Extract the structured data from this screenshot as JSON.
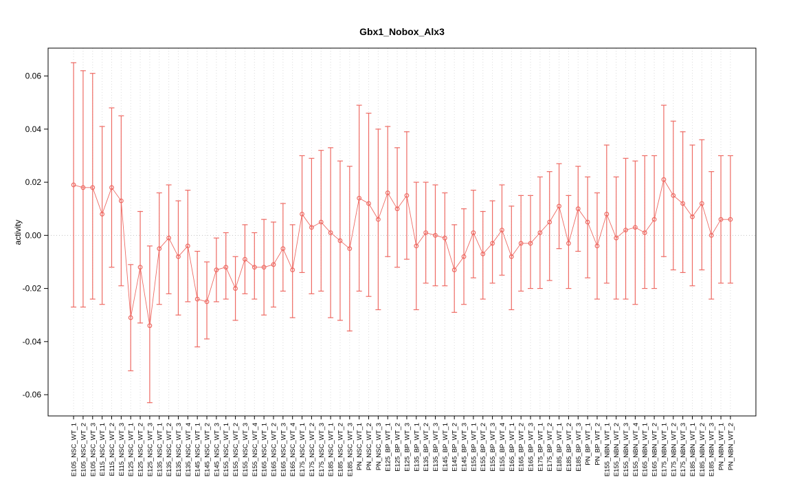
{
  "chart_data": {
    "type": "scatter",
    "title": "Gbx1_Nobox_Alx3",
    "ylabel": "activity",
    "xlabel": "",
    "ylim": [
      -0.068,
      0.0705
    ],
    "yticks": [
      -0.06,
      -0.04,
      -0.02,
      0,
      0.02,
      0.04,
      0.06
    ],
    "ytick_labels": [
      "-0.06",
      "-0.04",
      "-0.02",
      "0.00",
      "0.02",
      "0.04",
      "0.06"
    ],
    "grid": "vertical-dotted",
    "legend": "none",
    "point_style": "open-circle-with-error-bars",
    "colors": {
      "series": "#ee6a63",
      "grid": "#dadada",
      "zero_line": "#c0c0c0",
      "axis": "#000000",
      "background": "#ffffff"
    },
    "categories": [
      "E105_NSC_WT_1",
      "E105_NSC_WT_2",
      "E105_NSC_WT_3",
      "E115_NSC_WT_1",
      "E115_NSC_WT_2",
      "E115_NSC_WT_3",
      "E125_NSC_WT_1",
      "E125_NSC_WT_2",
      "E125_NSC_WT_3",
      "E135_NSC_WT_1",
      "E135_NSC_WT_2",
      "E135_NSC_WT_3",
      "E135_NSC_WT_4",
      "E145_NSC_WT_1",
      "E145_NSC_WT_2",
      "E145_NSC_WT_3",
      "E155_NSC_WT_1",
      "E155_NSC_WT_2",
      "E155_NSC_WT_3",
      "E155_NSC_WT_4",
      "E165_NSC_WT_1",
      "E165_NSC_WT_2",
      "E165_NSC_WT_3",
      "E165_NSC_WT_4",
      "E175_NSC_WT_1",
      "E175_NSC_WT_2",
      "E175_NSC_WT_3",
      "E185_NSC_WT_1",
      "E185_NSC_WT_2",
      "E185_NSC_WT_3",
      "PN_NSC_WT_1",
      "PN_NSC_WT_2",
      "PN_NSC_WT_3",
      "E125_BP_WT_1",
      "E125_BP_WT_2",
      "E125_BP_WT_3",
      "E135_BP_WT_1",
      "E135_BP_WT_2",
      "E135_BP_WT_3",
      "E145_BP_WT_1",
      "E145_BP_WT_2",
      "E145_BP_WT_3",
      "E155_BP_WT_1",
      "E155_BP_WT_2",
      "E155_BP_WT_3",
      "E155_BP_WT_4",
      "E165_BP_WT_1",
      "E165_BP_WT_2",
      "E165_BP_WT_3",
      "E175_BP_WT_1",
      "E175_BP_WT_2",
      "E185_BP_WT_1",
      "E185_BP_WT_2",
      "E185_BP_WT_3",
      "PN_BP_WT_1",
      "PN_BP_WT_2",
      "E155_NBN_WT_1",
      "E155_NBN_WT_2",
      "E155_NBN_WT_3",
      "E155_NBN_WT_4",
      "E165_NBN_WT_1",
      "E165_NBN_WT_2",
      "E175_NBN_WT_1",
      "E175_NBN_WT_2",
      "E175_NBN_WT_3",
      "E185_NBN_WT_1",
      "E185_NBN_WT_2",
      "E185_NBN_WT_3",
      "PN_NBN_WT_1",
      "PN_NBN_WT_2"
    ],
    "series": [
      {
        "name": "activity",
        "means": [
          0.019,
          0.018,
          0.018,
          0.008,
          0.018,
          0.013,
          -0.031,
          -0.012,
          -0.034,
          -0.005,
          -0.001,
          -0.008,
          -0.004,
          -0.024,
          -0.025,
          -0.013,
          -0.012,
          -0.02,
          -0.009,
          -0.012,
          -0.012,
          -0.011,
          -0.005,
          -0.013,
          0.008,
          0.003,
          0.005,
          0.001,
          -0.002,
          -0.005,
          0.014,
          0.012,
          0.006,
          0.016,
          0.01,
          0.015,
          -0.004,
          0.001,
          0.0,
          -0.001,
          -0.013,
          -0.008,
          0.001,
          -0.007,
          -0.003,
          0.002,
          -0.008,
          -0.003,
          -0.003,
          0.001,
          0.005,
          0.011,
          -0.003,
          0.01,
          0.005,
          -0.004,
          0.008,
          -0.001,
          0.002,
          0.003,
          0.001,
          0.006,
          0.021,
          0.015,
          0.012,
          0.007,
          0.012,
          0.0,
          0.006,
          0.006
        ],
        "ci_low": [
          -0.027,
          -0.027,
          -0.024,
          -0.026,
          -0.012,
          -0.019,
          -0.051,
          -0.033,
          -0.063,
          -0.026,
          -0.022,
          -0.03,
          -0.025,
          -0.042,
          -0.039,
          -0.025,
          -0.024,
          -0.032,
          -0.022,
          -0.024,
          -0.03,
          -0.027,
          -0.021,
          -0.031,
          -0.014,
          -0.022,
          -0.021,
          -0.031,
          -0.032,
          -0.036,
          -0.021,
          -0.023,
          -0.028,
          -0.008,
          -0.012,
          -0.009,
          -0.028,
          -0.018,
          -0.019,
          -0.019,
          -0.029,
          -0.026,
          -0.016,
          -0.024,
          -0.018,
          -0.015,
          -0.028,
          -0.021,
          -0.02,
          -0.02,
          -0.017,
          -0.005,
          -0.02,
          -0.006,
          -0.016,
          -0.024,
          -0.018,
          -0.024,
          -0.024,
          -0.026,
          -0.02,
          -0.02,
          -0.008,
          -0.013,
          -0.014,
          -0.019,
          -0.013,
          -0.024,
          -0.018,
          -0.018
        ],
        "ci_high": [
          0.065,
          0.062,
          0.061,
          0.041,
          0.048,
          0.045,
          -0.011,
          0.009,
          -0.004,
          0.016,
          0.019,
          0.013,
          0.017,
          -0.006,
          -0.01,
          -0.001,
          0.001,
          -0.008,
          0.004,
          0.001,
          0.006,
          0.005,
          0.012,
          0.004,
          0.03,
          0.029,
          0.032,
          0.033,
          0.028,
          0.026,
          0.049,
          0.046,
          0.04,
          0.041,
          0.033,
          0.039,
          0.02,
          0.02,
          0.019,
          0.016,
          0.004,
          0.01,
          0.017,
          0.009,
          0.013,
          0.019,
          0.011,
          0.015,
          0.015,
          0.022,
          0.024,
          0.027,
          0.015,
          0.026,
          0.022,
          0.016,
          0.034,
          0.022,
          0.029,
          0.028,
          0.03,
          0.03,
          0.049,
          0.043,
          0.039,
          0.034,
          0.036,
          0.024,
          0.03,
          0.03
        ]
      }
    ]
  }
}
